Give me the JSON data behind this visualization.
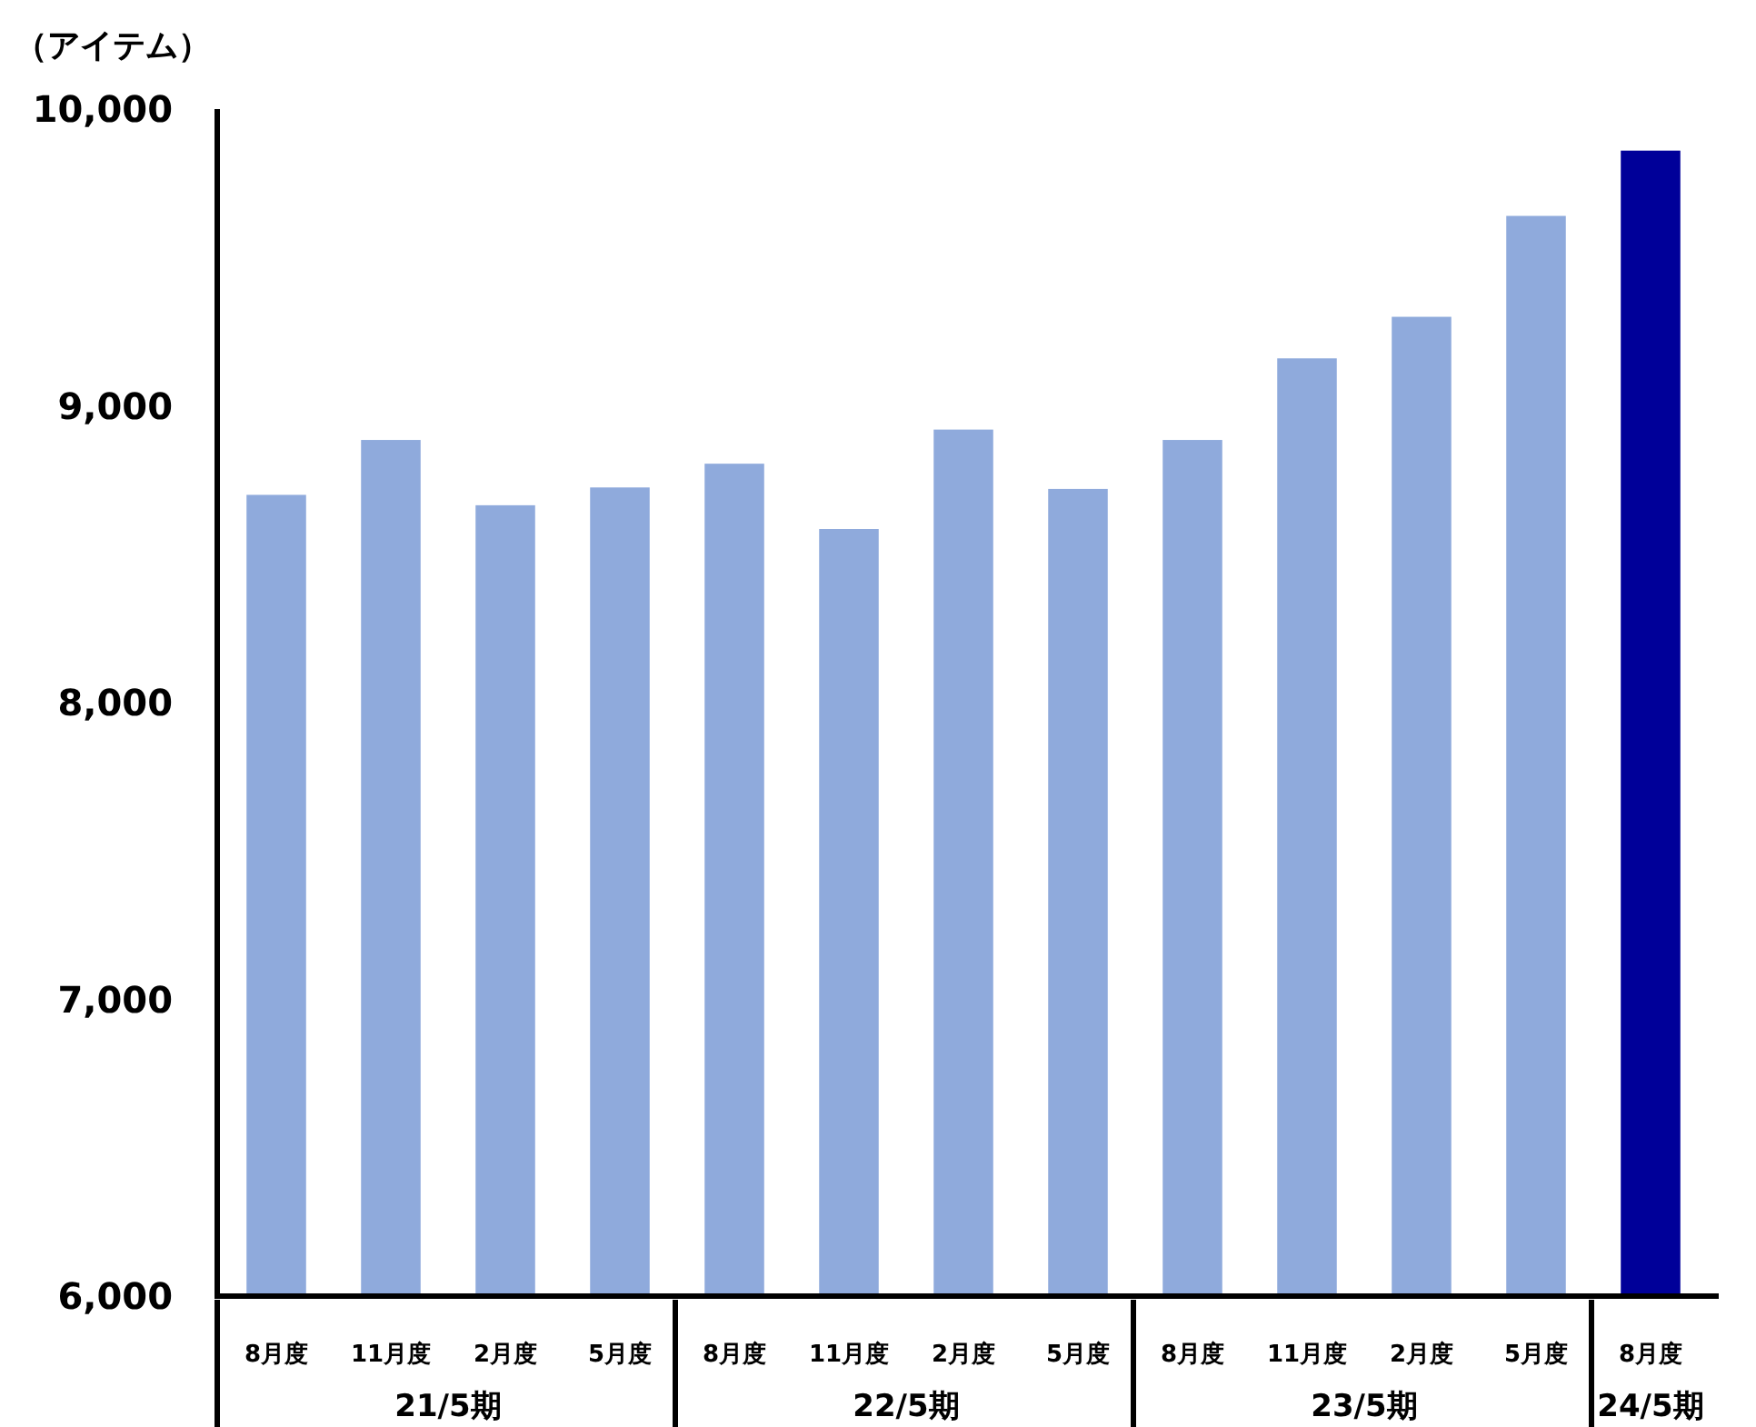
{
  "chart_data": {
    "type": "bar",
    "ylabel": "（アイテム）",
    "categories": [
      "8月度",
      "11月度",
      "2月度",
      "5月度",
      "8月度",
      "11月度",
      "2月度",
      "5月度",
      "8月度",
      "11月度",
      "2月度",
      "5月度",
      "8月度"
    ],
    "values": [
      8700,
      8885,
      8665,
      8725,
      8805,
      8585,
      8920,
      8720,
      8885,
      9160,
      9300,
      9640,
      9860
    ],
    "colors": [
      "#8faadc",
      "#8faadc",
      "#8faadc",
      "#8faadc",
      "#8faadc",
      "#8faadc",
      "#8faadc",
      "#8faadc",
      "#8faadc",
      "#8faadc",
      "#8faadc",
      "#8faadc",
      "#000099"
    ],
    "ylim": [
      6000,
      10000
    ],
    "yticks": [
      {
        "value": 6000,
        "label": "6,000"
      },
      {
        "value": 7000,
        "label": "7,000"
      },
      {
        "value": 8000,
        "label": "8,000"
      },
      {
        "value": 9000,
        "label": "9,000"
      },
      {
        "value": 10000,
        "label": "10,000"
      }
    ],
    "annotations": [
      "21/5期",
      "22/5期",
      "23/5期",
      "24/5期"
    ],
    "grid": false
  }
}
